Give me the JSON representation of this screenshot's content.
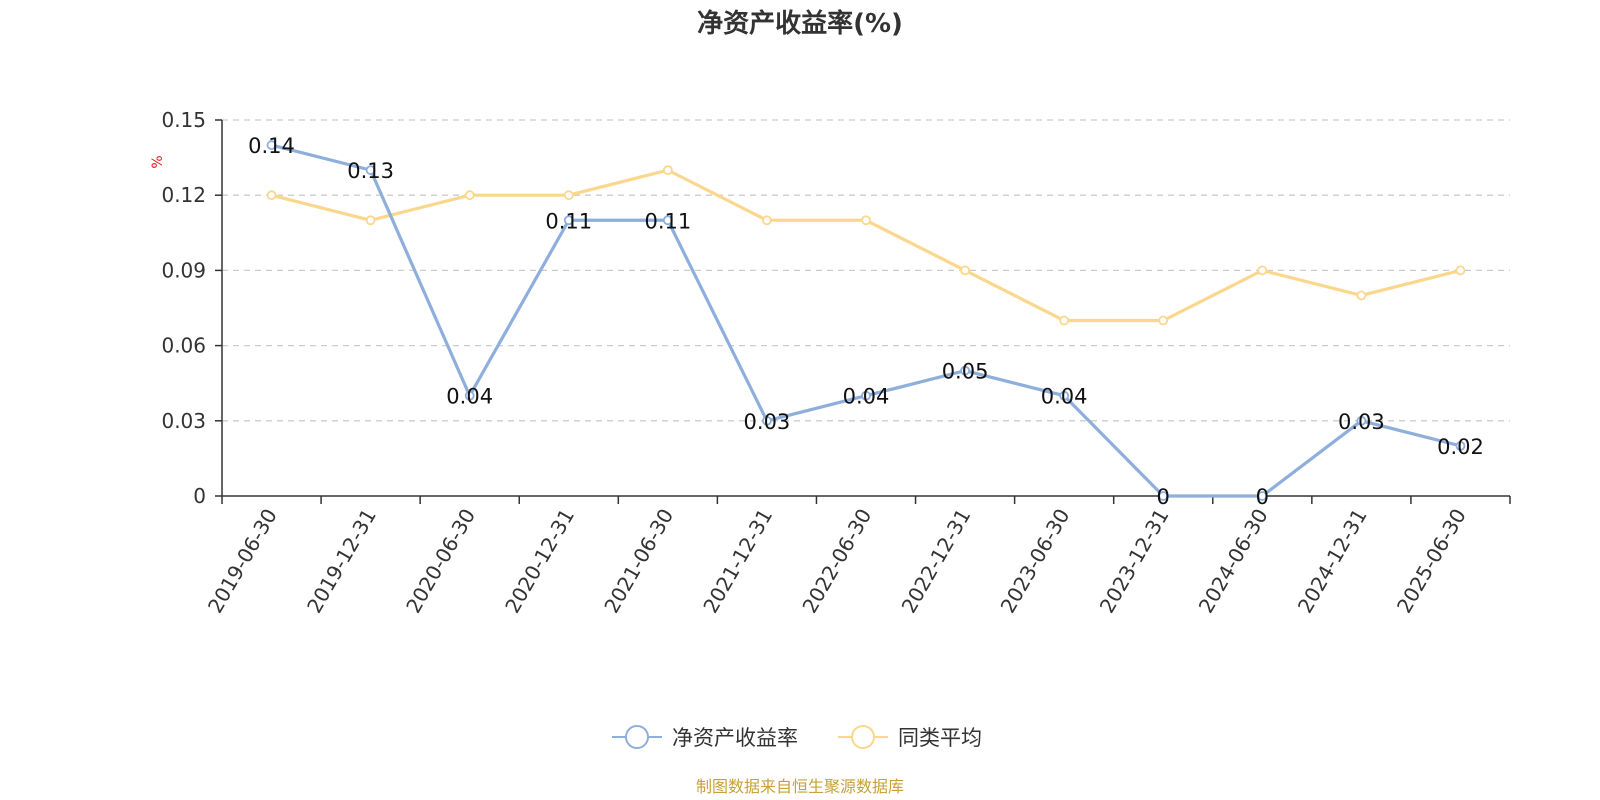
{
  "title": "净资产收益率(%)",
  "unit_label": "%",
  "source_text": "制图数据来自恒生聚源数据库",
  "chart_data": {
    "type": "line",
    "title": "净资产收益率(%)",
    "ylabel": "%",
    "ylim": [
      0,
      0.15
    ],
    "y_ticks": [
      0,
      0.03,
      0.06,
      0.09,
      0.12,
      0.15
    ],
    "y_tick_labels": [
      "0",
      "0.03",
      "0.06",
      "0.09",
      "0.12",
      "0.15"
    ],
    "grid": true,
    "legend_position": "bottom",
    "x": [
      "2019-06-30",
      "2019-12-31",
      "2020-06-30",
      "2020-12-31",
      "2021-06-30",
      "2021-12-31",
      "2022-06-30",
      "2022-12-31",
      "2023-06-30",
      "2023-12-31",
      "2024-06-30",
      "2024-12-31",
      "2025-06-30"
    ],
    "series": [
      {
        "name": "净资产收益率",
        "color": "#8eaedb",
        "values": [
          0.14,
          0.13,
          0.04,
          0.11,
          0.11,
          0.03,
          0.04,
          0.05,
          0.04,
          0,
          0,
          0.03,
          0.02
        ],
        "data_labels": [
          "0.14",
          "0.13",
          "0.04",
          "0.11",
          "0.11",
          "0.03",
          "0.04",
          "0.05",
          "0.04",
          "0",
          "0",
          "0.03",
          "0.02"
        ]
      },
      {
        "name": "同类平均",
        "color": "#fbd78e",
        "values": [
          0.12,
          0.11,
          0.12,
          0.12,
          0.13,
          0.11,
          0.11,
          0.09,
          0.07,
          0.07,
          0.09,
          0.08,
          0.09
        ]
      }
    ]
  }
}
